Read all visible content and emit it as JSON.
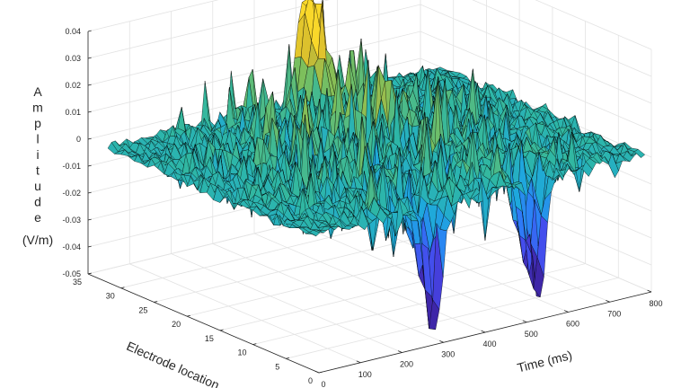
{
  "chart_data": {
    "type": "surface",
    "xlabel": "Time (ms)",
    "ylabel": "Electrode location",
    "zlabel": "Amplitude",
    "zlabel_unit": "(V/m)",
    "xlim": [
      0,
      800
    ],
    "ylim": [
      0,
      35
    ],
    "zlim": [
      -0.05,
      0.04
    ],
    "x_ticks": [
      "0",
      "100",
      "200",
      "300",
      "400",
      "500",
      "600",
      "700",
      "800"
    ],
    "y_ticks": [
      "0",
      "5",
      "10",
      "15",
      "20",
      "25",
      "30",
      "35"
    ],
    "z_ticks": [
      "-0.05",
      "-0.04",
      "-0.03",
      "-0.02",
      "-0.01",
      "0",
      "0.01",
      "0.02",
      "0.03",
      "0.04"
    ],
    "x_data_range": [
      0,
      800
    ],
    "y_data_range": [
      1,
      32
    ],
    "colormap": "parula",
    "colormap_stops": [
      "#3e26a8",
      "#4746eb",
      "#2c7ef8",
      "#1ea8dd",
      "#2eb7a4",
      "#7bbf5d",
      "#d4ba2e",
      "#f9d82a"
    ],
    "edge_color": "#000000",
    "grid": true,
    "features": [
      {
        "time_ms": 300,
        "electrode": 1,
        "amplitude": -0.045
      },
      {
        "time_ms": 545,
        "electrode": 1,
        "amplitude": -0.044
      },
      {
        "time_ms": 470,
        "electrode": 31,
        "amplitude": 0.04
      }
    ],
    "noise_amplitude": 0.028
  }
}
